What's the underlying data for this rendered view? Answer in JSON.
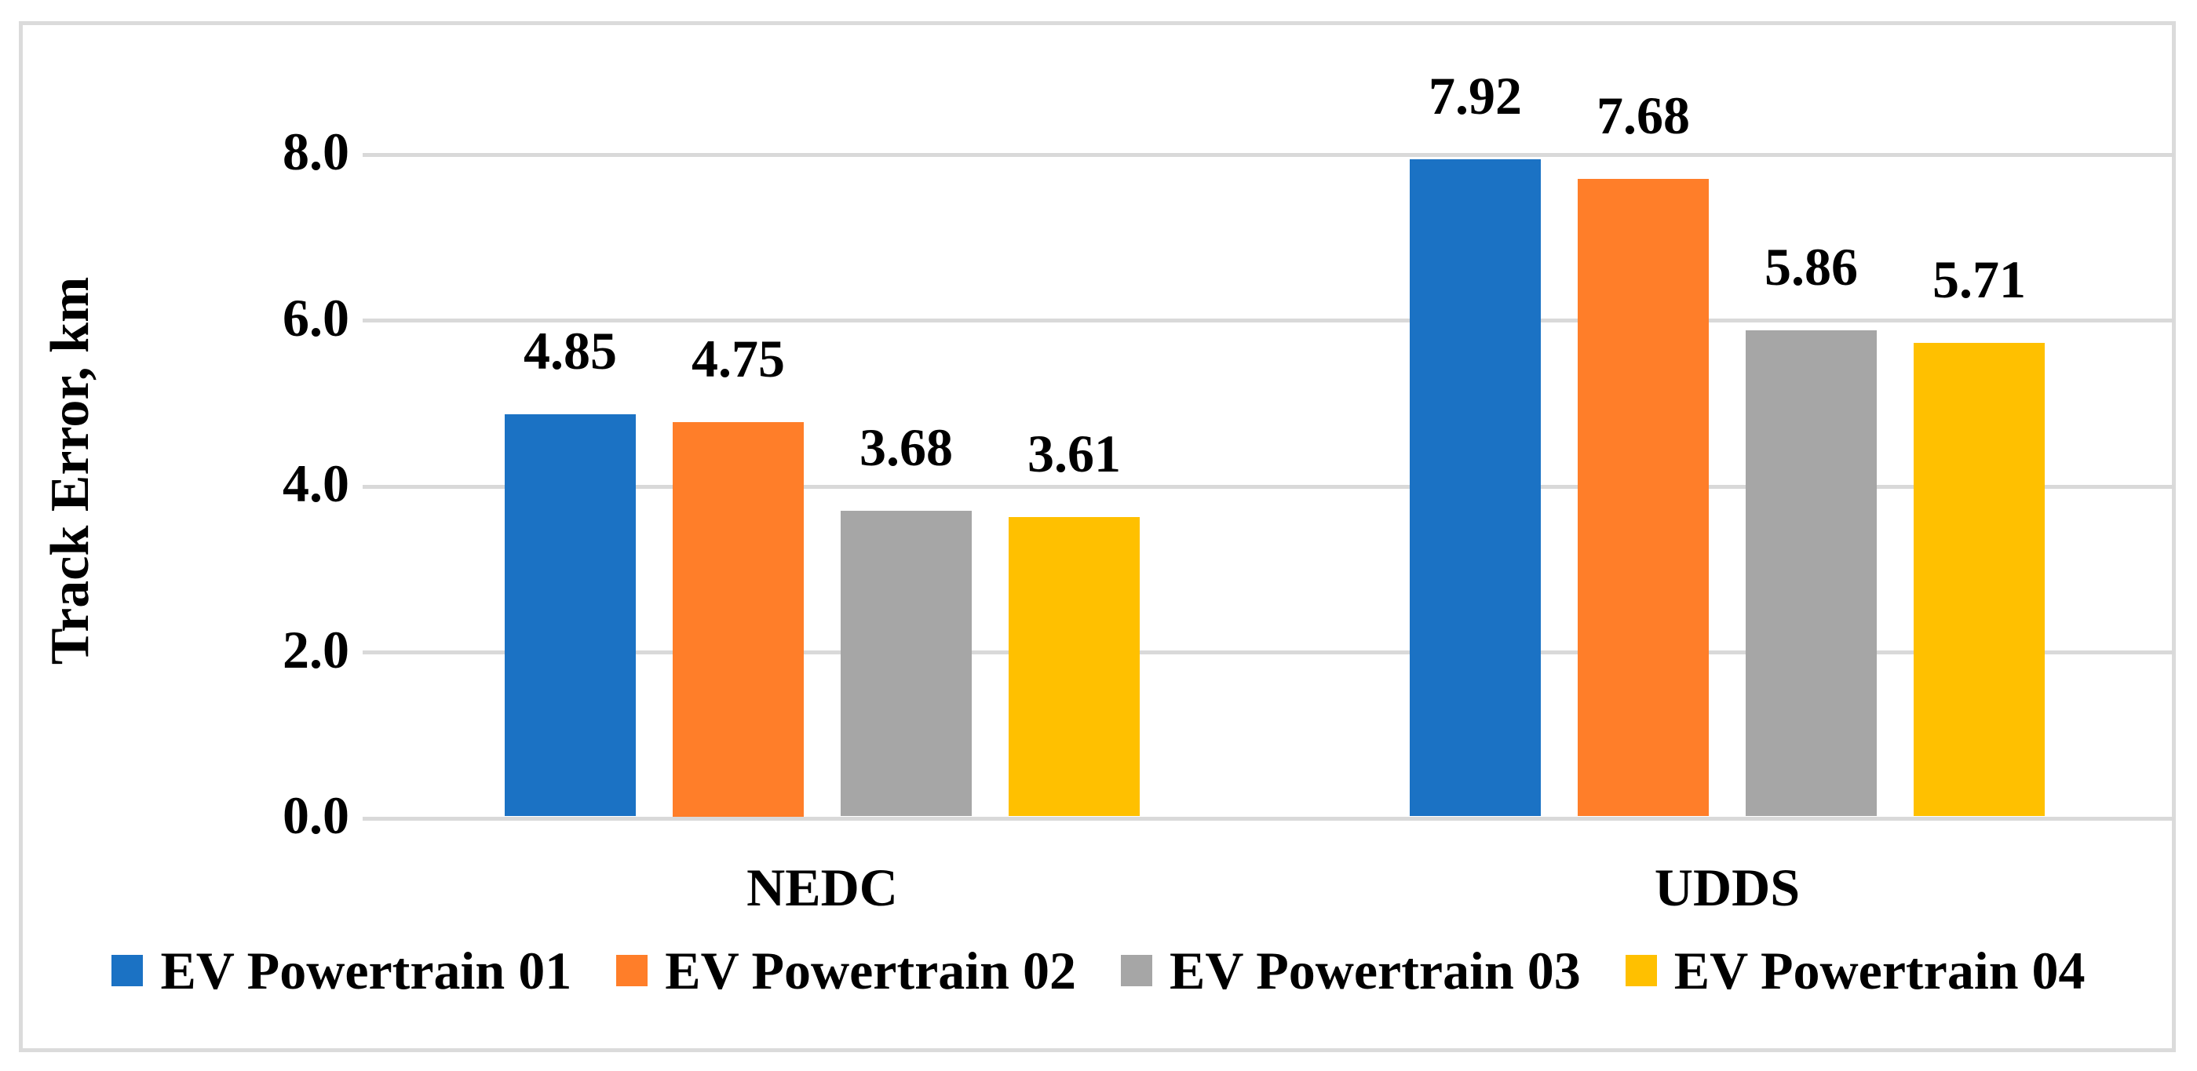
{
  "chart_data": {
    "type": "bar",
    "title": "",
    "ylabel": "Track Error, km",
    "categories": [
      "NEDC",
      "UDDS"
    ],
    "series": [
      {
        "name": "EV Powertrain 01",
        "color": "#1B72C4",
        "values": [
          4.85,
          7.92
        ],
        "value_labels": [
          "4.85",
          "7.92"
        ]
      },
      {
        "name": "EV Powertrain 02",
        "color": "#FF7E29",
        "values": [
          4.75,
          7.68
        ],
        "value_labels": [
          "4.75",
          "7.68"
        ]
      },
      {
        "name": "EV Powertrain 03",
        "color": "#A6A6A6",
        "values": [
          3.68,
          5.86
        ],
        "value_labels": [
          "3.68",
          "5.86"
        ]
      },
      {
        "name": "EV Powertrain 04",
        "color": "#FFC000",
        "values": [
          3.61,
          5.71
        ],
        "value_labels": [
          "3.61",
          "5.71"
        ]
      }
    ],
    "yticks": [
      0.0,
      2.0,
      4.0,
      6.0,
      8.0
    ],
    "ytick_labels": [
      "0.0",
      "2.0",
      "4.0",
      "6.0",
      "8.0"
    ],
    "ylim": [
      0,
      9.6
    ],
    "grid": "horizontal",
    "legend_position": "bottom",
    "colors": {
      "gridline": "#D9D9D9",
      "frame_border": "#DBDBDB",
      "text": "#000000",
      "background": "#FFFFFF"
    }
  }
}
